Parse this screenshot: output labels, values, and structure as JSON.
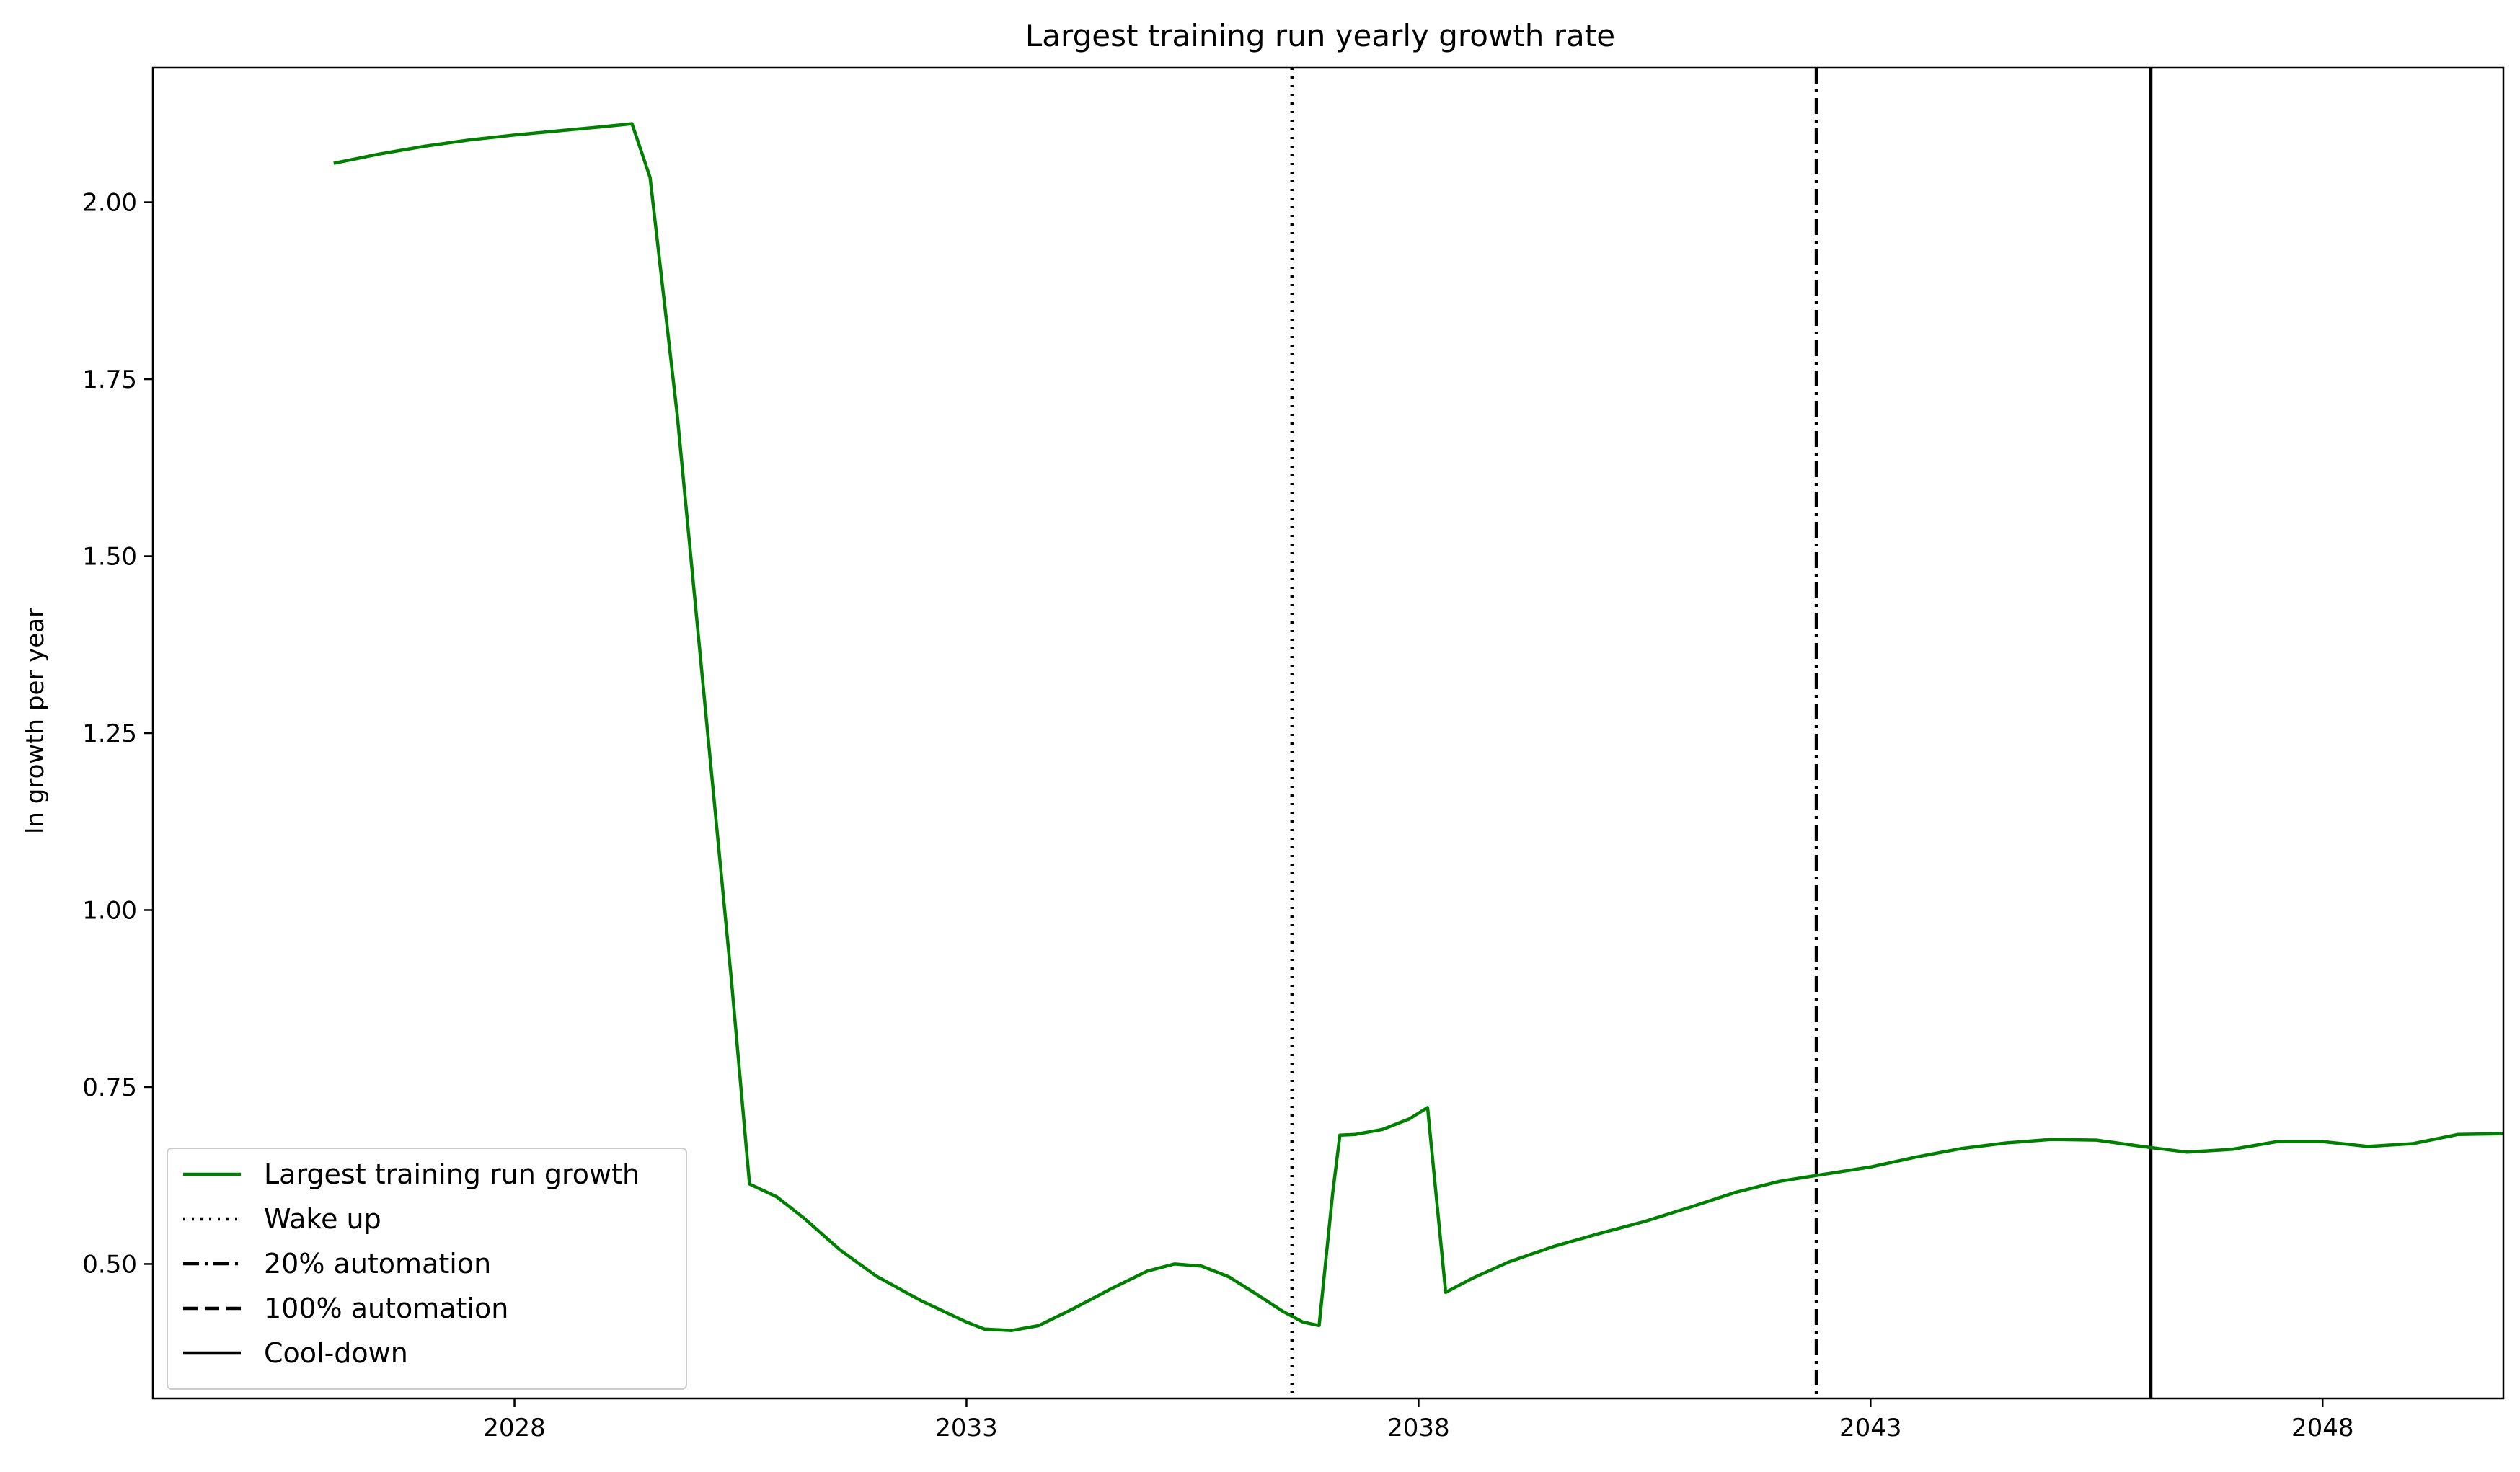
{
  "chart_data": {
    "type": "line",
    "title": "Largest training run yearly growth rate",
    "xlabel": "",
    "ylabel": "ln growth per year",
    "xlim": [
      2024.0,
      2050.0
    ],
    "ylim": [
      0.31,
      2.19
    ],
    "xticks": [
      2028,
      2033,
      2038,
      2043,
      2048
    ],
    "yticks": [
      0.5,
      0.75,
      1.0,
      1.25,
      1.5,
      1.75,
      2.0
    ],
    "grid": false,
    "legend_position": "lower-left",
    "series": [
      {
        "name": "Largest training run growth",
        "color": "#008000",
        "style": "solid",
        "points": [
          [
            2026.0,
            2.055
          ],
          [
            2026.5,
            2.068
          ],
          [
            2027.0,
            2.079
          ],
          [
            2027.5,
            2.088
          ],
          [
            2028.0,
            2.095
          ],
          [
            2028.5,
            2.101
          ],
          [
            2029.0,
            2.107
          ],
          [
            2029.3,
            2.111
          ],
          [
            2029.5,
            2.035
          ],
          [
            2029.8,
            1.7
          ],
          [
            2030.1,
            1.3
          ],
          [
            2030.4,
            0.9
          ],
          [
            2030.6,
            0.613
          ],
          [
            2030.9,
            0.595
          ],
          [
            2031.2,
            0.565
          ],
          [
            2031.6,
            0.52
          ],
          [
            2032.0,
            0.483
          ],
          [
            2032.5,
            0.448
          ],
          [
            2033.0,
            0.418
          ],
          [
            2033.2,
            0.408
          ],
          [
            2033.5,
            0.406
          ],
          [
            2033.8,
            0.413
          ],
          [
            2034.2,
            0.438
          ],
          [
            2034.6,
            0.465
          ],
          [
            2035.0,
            0.49
          ],
          [
            2035.3,
            0.5
          ],
          [
            2035.6,
            0.497
          ],
          [
            2035.9,
            0.482
          ],
          [
            2036.2,
            0.458
          ],
          [
            2036.5,
            0.433
          ],
          [
            2036.72,
            0.418
          ],
          [
            2036.9,
            0.413
          ],
          [
            2037.05,
            0.6
          ],
          [
            2037.13,
            0.682
          ],
          [
            2037.3,
            0.683
          ],
          [
            2037.6,
            0.69
          ],
          [
            2037.9,
            0.705
          ],
          [
            2038.1,
            0.721
          ],
          [
            2038.3,
            0.46
          ],
          [
            2038.6,
            0.48
          ],
          [
            2039.0,
            0.503
          ],
          [
            2039.5,
            0.525
          ],
          [
            2040.0,
            0.543
          ],
          [
            2040.5,
            0.56
          ],
          [
            2041.0,
            0.58
          ],
          [
            2041.5,
            0.601
          ],
          [
            2042.0,
            0.617
          ],
          [
            2042.5,
            0.627
          ],
          [
            2043.0,
            0.637
          ],
          [
            2043.5,
            0.651
          ],
          [
            2044.0,
            0.663
          ],
          [
            2044.5,
            0.671
          ],
          [
            2045.0,
            0.676
          ],
          [
            2045.5,
            0.675
          ],
          [
            2046.0,
            0.666
          ],
          [
            2046.5,
            0.658
          ],
          [
            2047.0,
            0.662
          ],
          [
            2047.5,
            0.673
          ],
          [
            2048.0,
            0.673
          ],
          [
            2048.5,
            0.666
          ],
          [
            2049.0,
            0.67
          ],
          [
            2049.5,
            0.683
          ],
          [
            2050.0,
            0.684
          ],
          [
            2050.5,
            0.68
          ],
          [
            2051.0,
            0.676
          ]
        ]
      }
    ],
    "vlines": [
      {
        "name": "Wake up",
        "x": 2036.6,
        "style": "dotted",
        "color": "#000000"
      },
      {
        "name": "20% automation",
        "x": 2042.4,
        "style": "dashdot",
        "color": "#000000"
      },
      {
        "name": "100% automation",
        "x": null,
        "style": "dashed",
        "color": "#000000"
      },
      {
        "name": "Cool-down",
        "x": 2046.1,
        "style": "solid",
        "color": "#000000"
      }
    ]
  }
}
